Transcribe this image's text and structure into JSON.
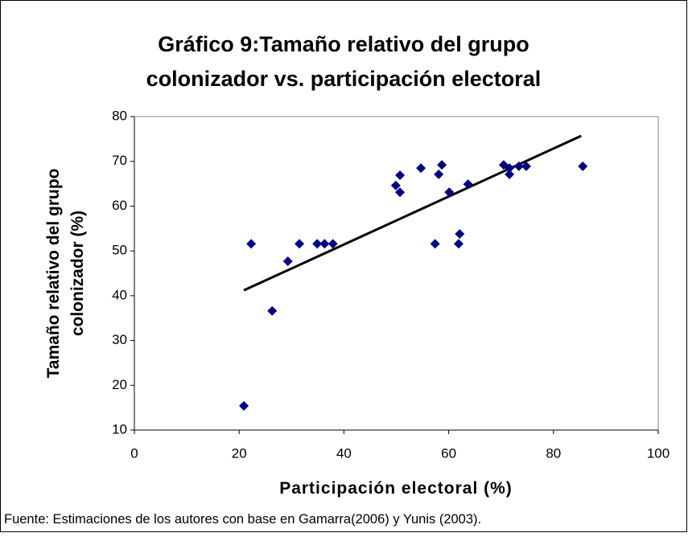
{
  "chart_data": {
    "type": "scatter",
    "title": [
      "Gráfico 9:Tamaño relativo del grupo",
      "colonizador vs. participación electoral"
    ],
    "y_label": [
      "Tamaño relativo del grupo",
      "colonizador (%)"
    ],
    "x_label": "Participación electoral (%)",
    "source": "Fuente: Estimaciones de los autores con base en Gamarra(2006) y Yunis (2003).",
    "xlim": [
      0,
      100
    ],
    "xticks": [
      0,
      20,
      40,
      60,
      80,
      100
    ],
    "ylim": [
      10,
      80
    ],
    "yticks": [
      10,
      20,
      30,
      40,
      50,
      60,
      70,
      80
    ],
    "grid": false,
    "color": "#000080",
    "x": [
      20.9,
      22.3,
      26.3,
      29.3,
      31.5,
      34.9,
      36.3,
      37.9,
      49.9,
      50.7,
      50.7,
      54.7,
      57.4,
      58.1,
      58.7,
      60.1,
      63.7,
      62.1,
      61.9,
      70.5,
      71.6,
      71.6,
      73.4,
      74.8,
      85.6
    ],
    "values": [
      15.4,
      51.6,
      36.6,
      47.7,
      51.6,
      51.6,
      51.6,
      51.6,
      64.6,
      66.9,
      63.1,
      68.5,
      51.6,
      67.1,
      69.2,
      63.1,
      64.9,
      53.8,
      51.6,
      69.2,
      67.1,
      68.5,
      68.9,
      68.9,
      68.9
    ],
    "trendline": {
      "color": "#000000",
      "x": [
        20.9,
        85.3
      ],
      "values": [
        41.2,
        75.7
      ]
    }
  }
}
